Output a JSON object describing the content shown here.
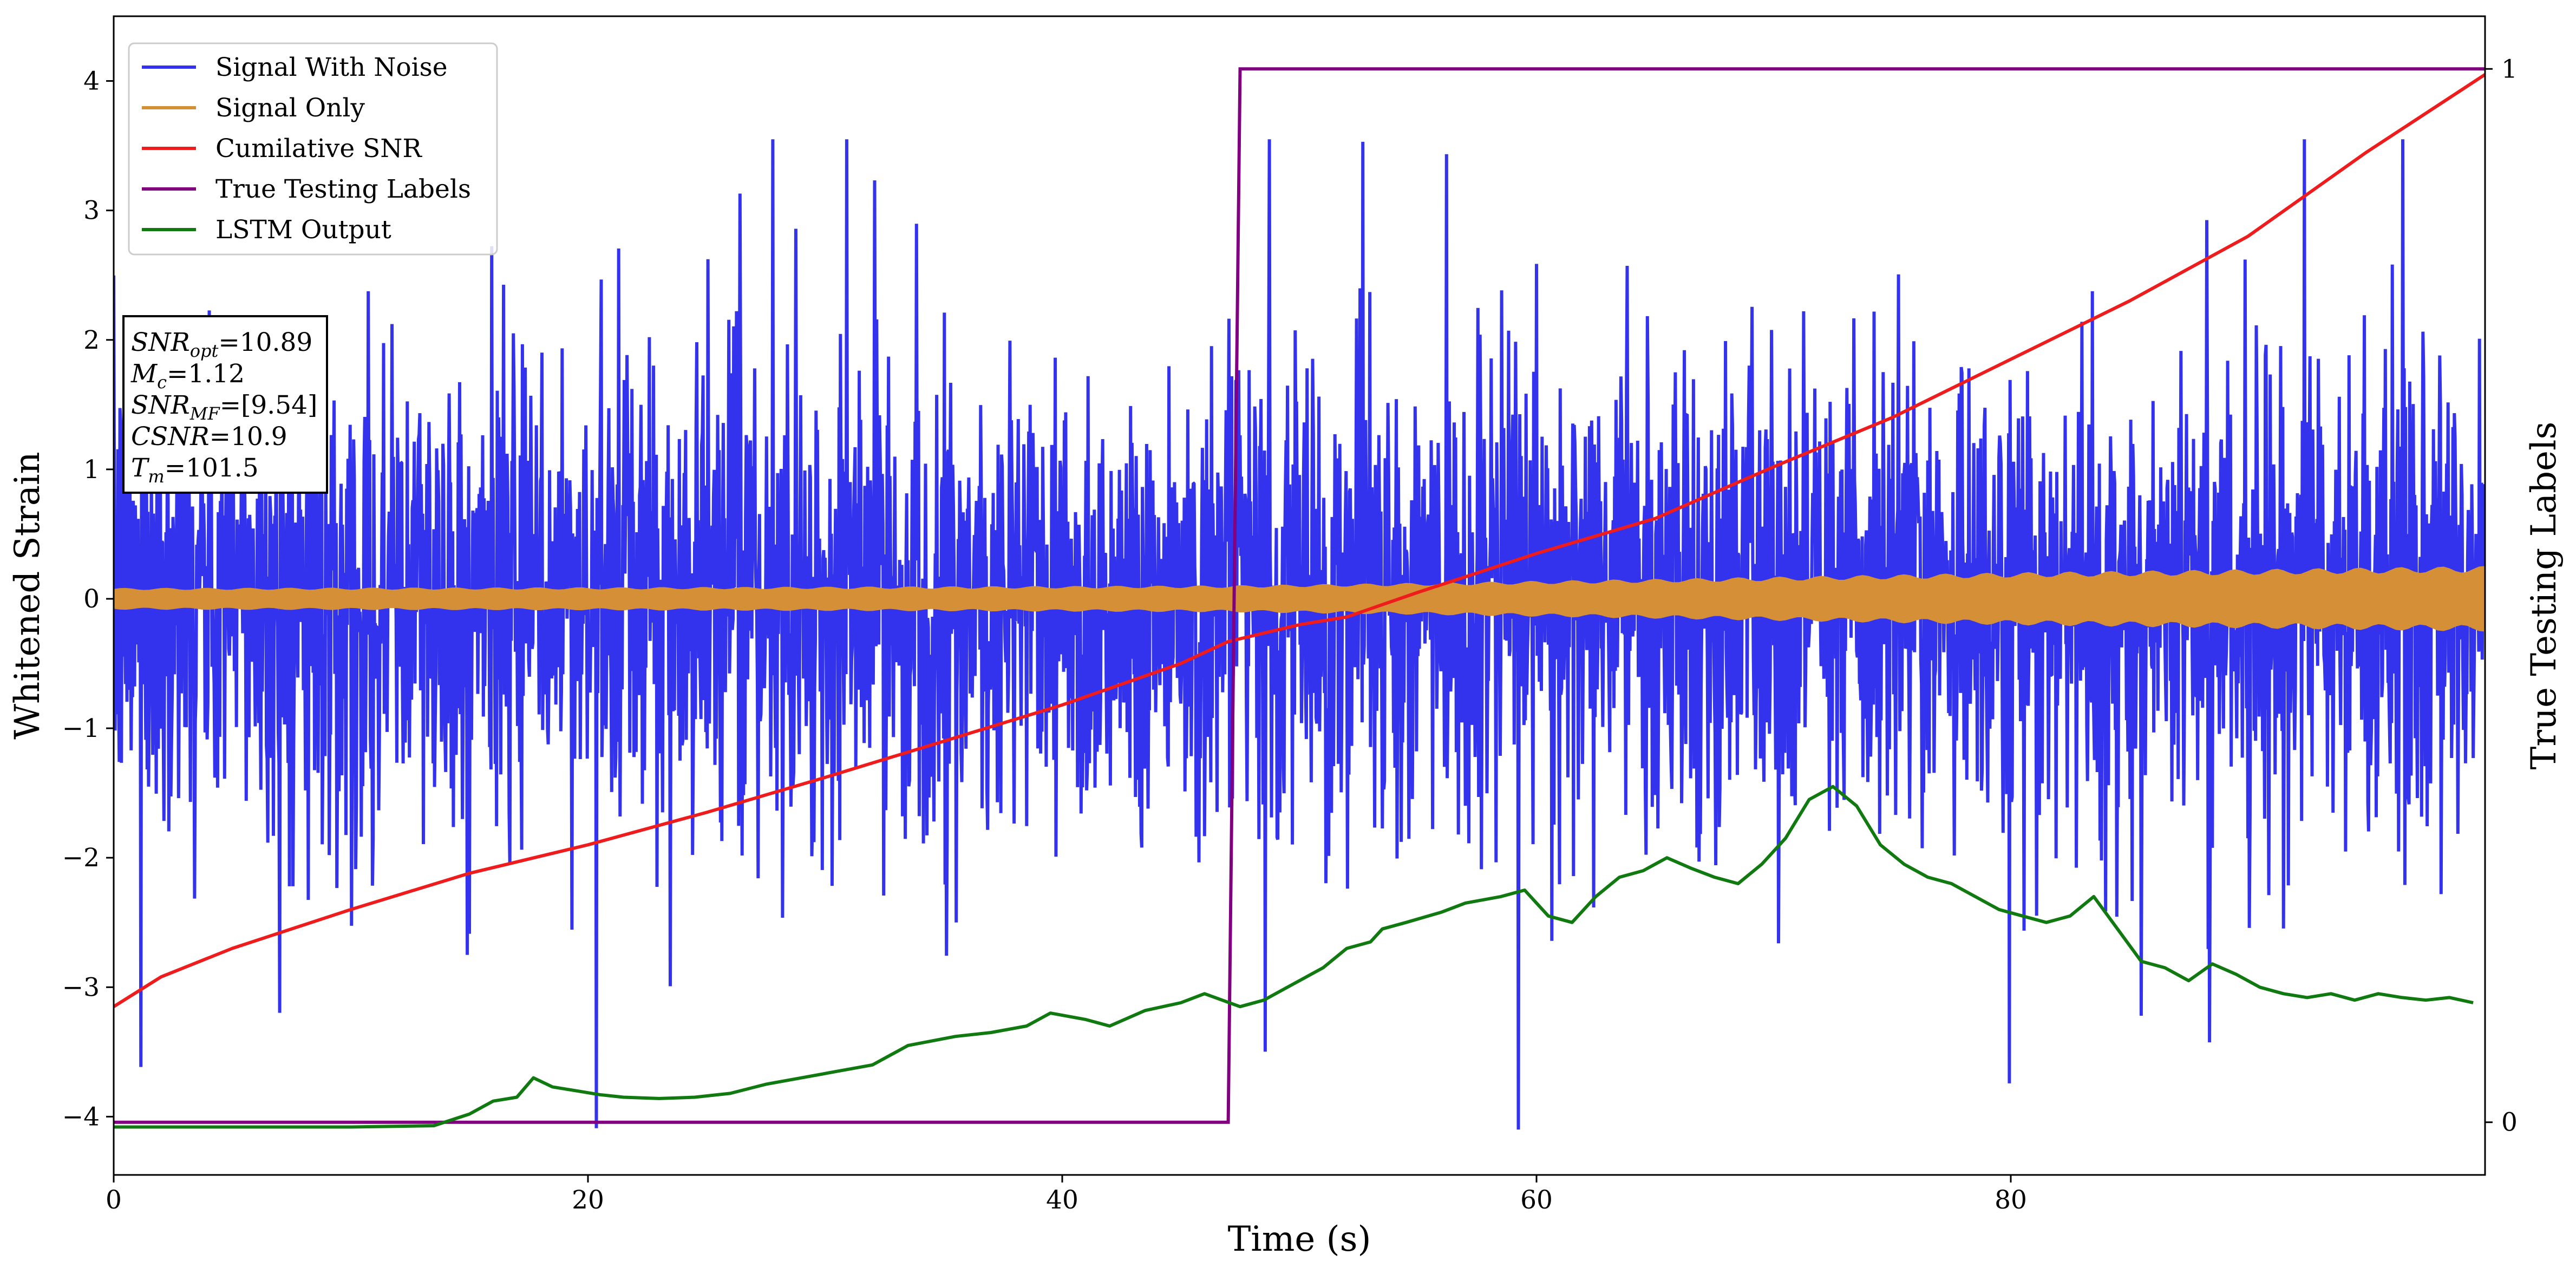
{
  "chart_data": {
    "type": "line",
    "xlabel": "Time (s)",
    "ylabel": "Whitened Strain",
    "y2label": "True Testing Labels",
    "xlim": [
      0,
      100
    ],
    "ylim": [
      -4.45,
      4.5
    ],
    "y2lim": [
      -0.05,
      1.05
    ],
    "x_ticks": [
      0,
      20,
      40,
      60,
      80
    ],
    "y_ticks": [
      -4,
      -3,
      -2,
      -1,
      0,
      1,
      2,
      3,
      4
    ],
    "y2_ticks": [
      0,
      1
    ],
    "legend_position": "upper-left",
    "grid": false,
    "series": [
      {
        "name": "Signal With Noise",
        "color": "#3333ee",
        "axis": "left",
        "style": "dense noise, approx. gaussian, sigma 0.9, spikes to +/-3.5 or more, x from 0 to 100",
        "x": [
          0,
          100
        ],
        "y": [
          0,
          0
        ]
      },
      {
        "name": "Signal Only",
        "color": "#d58f36",
        "axis": "left",
        "style": "oscillating chirp, envelope amplitude grows from about 0.08 to about 0.25",
        "x": [
          0,
          20,
          40,
          47,
          55,
          65,
          80,
          100
        ],
        "amplitude": [
          0.08,
          0.085,
          0.095,
          0.1,
          0.12,
          0.15,
          0.2,
          0.25
        ]
      },
      {
        "name": "Cumilative SNR",
        "color": "#ee1c1c",
        "axis": "left",
        "x": [
          0,
          2,
          5,
          10,
          15,
          20,
          25,
          30,
          35,
          40,
          45,
          47,
          50,
          52,
          55,
          60,
          65,
          70,
          75,
          80,
          85,
          90,
          95,
          100
        ],
        "y": [
          -3.15,
          -2.92,
          -2.7,
          -2.4,
          -2.12,
          -1.9,
          -1.65,
          -1.38,
          -1.1,
          -0.82,
          -0.5,
          -0.33,
          -0.2,
          -0.14,
          0.05,
          0.35,
          0.62,
          1.02,
          1.4,
          1.85,
          2.3,
          2.8,
          3.45,
          4.05
        ]
      },
      {
        "name": "True Testing Labels",
        "color": "#800080",
        "axis": "right",
        "x": [
          0,
          47,
          47.5,
          100
        ],
        "y": [
          0,
          0,
          1,
          1
        ]
      },
      {
        "name": "LSTM Output",
        "color": "#107a10",
        "axis": "left",
        "x": [
          0,
          5,
          10,
          13.5,
          15,
          16,
          17,
          17.7,
          18.5,
          19.5,
          20.5,
          21.5,
          23,
          24.5,
          26,
          27.5,
          29,
          30.5,
          32,
          33.5,
          35.5,
          37,
          38.5,
          39.5,
          41,
          42,
          43.5,
          45,
          46,
          47.5,
          48.5,
          49.5,
          51,
          52,
          53,
          53.5,
          54.5,
          56,
          57,
          58.5,
          59.5,
          60.5,
          61.5,
          62.5,
          63.5,
          64.5,
          65.5,
          66.5,
          67.5,
          68.5,
          69.5,
          70.5,
          71.5,
          72.5,
          73.5,
          74.5,
          75.5,
          76.5,
          77.5,
          78.5,
          79.5,
          80.5,
          81.5,
          82.5,
          83.5,
          84.5,
          85.5,
          86.5,
          87.5,
          88.5,
          89.5,
          90.5,
          91.5,
          92.5,
          93.5,
          94.5,
          95.5,
          96.5,
          97.5,
          98.5,
          99.5
        ],
        "y": [
          -4.08,
          -4.08,
          -4.08,
          -4.07,
          -3.98,
          -3.88,
          -3.85,
          -3.7,
          -3.77,
          -3.8,
          -3.83,
          -3.85,
          -3.86,
          -3.85,
          -3.82,
          -3.75,
          -3.7,
          -3.65,
          -3.6,
          -3.45,
          -3.38,
          -3.35,
          -3.3,
          -3.2,
          -3.25,
          -3.3,
          -3.18,
          -3.12,
          -3.05,
          -3.15,
          -3.1,
          -3.0,
          -2.85,
          -2.7,
          -2.65,
          -2.55,
          -2.5,
          -2.42,
          -2.35,
          -2.3,
          -2.25,
          -2.45,
          -2.5,
          -2.3,
          -2.15,
          -2.1,
          -2.0,
          -2.08,
          -2.15,
          -2.2,
          -2.05,
          -1.85,
          -1.55,
          -1.45,
          -1.6,
          -1.9,
          -2.05,
          -2.15,
          -2.2,
          -2.3,
          -2.4,
          -2.45,
          -2.5,
          -2.45,
          -2.3,
          -2.55,
          -2.8,
          -2.85,
          -2.95,
          -2.82,
          -2.9,
          -3.0,
          -3.05,
          -3.08,
          -3.05,
          -3.1,
          -3.05,
          -3.08,
          -3.1,
          -3.08,
          -3.12
        ]
      }
    ]
  },
  "info_box": {
    "lines": [
      {
        "base": "SNR",
        "sub": "opt",
        "rest": "=10.89"
      },
      {
        "base": "M",
        "sub": "c",
        "rest": "=1.12"
      },
      {
        "base": "SNR",
        "sub": "MF",
        "rest": "=[9.54]"
      },
      {
        "base": "CSNR",
        "sub": "",
        "rest": "=10.9"
      },
      {
        "base": "T",
        "sub": "m",
        "rest": "=101.5"
      }
    ]
  },
  "colors": {
    "signal_with_noise": "#3333ee",
    "signal_only": "#d58f36",
    "cumulative_snr": "#ee1c1c",
    "true_labels": "#800080",
    "lstm_output": "#107a10"
  }
}
